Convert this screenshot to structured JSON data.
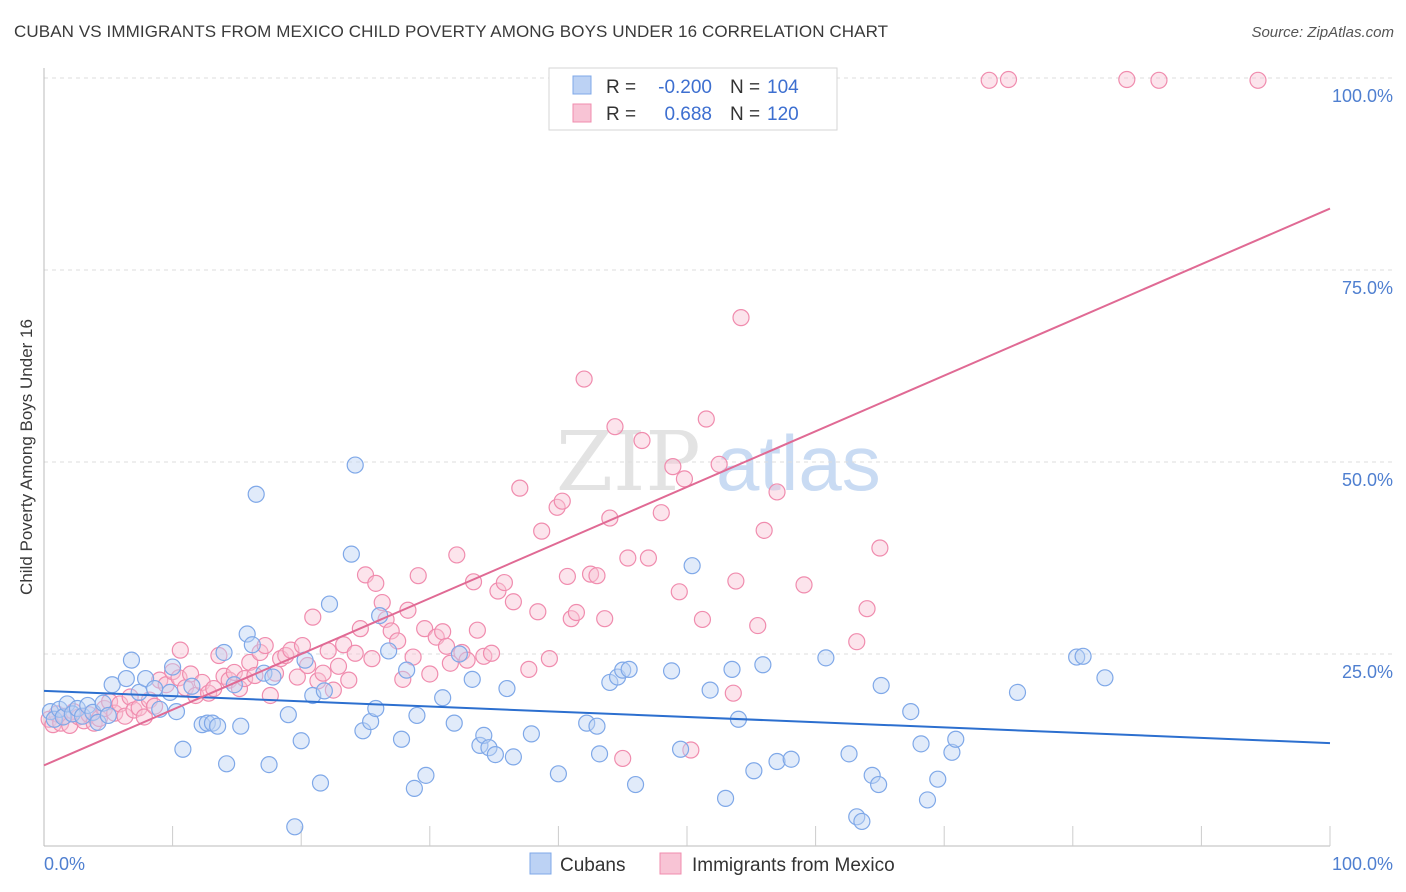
{
  "header": {
    "title": "CUBAN VS IMMIGRANTS FROM MEXICO CHILD POVERTY AMONG BOYS UNDER 16 CORRELATION CHART",
    "source": "Source: ZipAtlas.com"
  },
  "watermark": {
    "part1": "ZIP",
    "part2": "atlas"
  },
  "colors": {
    "cubans": "#7fa8e8",
    "cubans_fill": "#bcd2f4",
    "cubans_line": "#2c6fcf",
    "mexico": "#f08cae",
    "mexico_fill": "#f8c4d5",
    "mexico_line": "#e06a94",
    "axis_text": "#4f7fd0",
    "grid": "#dddddd"
  },
  "stats_box": {
    "rows": [
      {
        "r_label": "R =",
        "r_value": "-0.200",
        "n_label": "N =",
        "n_value": "104"
      },
      {
        "r_label": "R =",
        "r_value": "0.688",
        "n_label": "N =",
        "n_value": "120"
      }
    ]
  },
  "chart_data": {
    "type": "scatter",
    "title": "CUBAN VS IMMIGRANTS FROM MEXICO CHILD POVERTY AMONG BOYS UNDER 16 CORRELATION CHART",
    "xlabel": "",
    "ylabel": "Child Poverty Among Boys Under 16",
    "xlim": [
      0,
      100
    ],
    "ylim": [
      0,
      102
    ],
    "x_tick_labels": [
      "0.0%",
      "100.0%"
    ],
    "y_ticks": [
      25,
      50,
      75,
      100
    ],
    "y_tick_labels": [
      "25.0%",
      "50.0%",
      "75.0%",
      "100.0%"
    ],
    "grid": true,
    "legend_position": "bottom-center",
    "series": [
      {
        "name": "Cubans",
        "r": -0.2,
        "n": 104,
        "trend": {
          "x": [
            0,
            100
          ],
          "y": [
            20.2,
            13.4
          ]
        },
        "points": [
          [
            0.5,
            17.5
          ],
          [
            0.8,
            16.5
          ],
          [
            1.2,
            17.8
          ],
          [
            1.5,
            16.8
          ],
          [
            1.8,
            18.5
          ],
          [
            2.2,
            17.2
          ],
          [
            2.6,
            17.9
          ],
          [
            3.0,
            16.9
          ],
          [
            3.4,
            18.3
          ],
          [
            3.8,
            17.4
          ],
          [
            4.2,
            16.1
          ],
          [
            4.6,
            18.6
          ],
          [
            5.0,
            17.0
          ],
          [
            5.3,
            21.0
          ],
          [
            6.4,
            21.8
          ],
          [
            6.8,
            24.2
          ],
          [
            7.4,
            20.0
          ],
          [
            7.9,
            21.8
          ],
          [
            8.6,
            20.5
          ],
          [
            9.0,
            17.8
          ],
          [
            9.8,
            20.0
          ],
          [
            10.0,
            23.3
          ],
          [
            10.3,
            17.5
          ],
          [
            10.8,
            12.6
          ],
          [
            11.5,
            20.8
          ],
          [
            12.3,
            15.8
          ],
          [
            12.7,
            16.0
          ],
          [
            13.1,
            16.0
          ],
          [
            13.5,
            15.6
          ],
          [
            14.0,
            25.2
          ],
          [
            14.2,
            10.7
          ],
          [
            14.8,
            21.0
          ],
          [
            15.3,
            15.6
          ],
          [
            15.8,
            27.6
          ],
          [
            16.2,
            26.2
          ],
          [
            16.5,
            45.8
          ],
          [
            17.1,
            22.5
          ],
          [
            17.5,
            10.6
          ],
          [
            17.8,
            22.0
          ],
          [
            19.0,
            17.1
          ],
          [
            19.5,
            2.5
          ],
          [
            20.0,
            13.7
          ],
          [
            20.3,
            24.2
          ],
          [
            20.9,
            19.6
          ],
          [
            21.5,
            8.2
          ],
          [
            21.8,
            20.2
          ],
          [
            22.2,
            31.5
          ],
          [
            23.9,
            38.0
          ],
          [
            24.2,
            49.6
          ],
          [
            24.8,
            15.0
          ],
          [
            25.4,
            16.2
          ],
          [
            25.8,
            17.9
          ],
          [
            26.1,
            30.0
          ],
          [
            26.8,
            25.4
          ],
          [
            27.8,
            13.9
          ],
          [
            28.2,
            22.9
          ],
          [
            28.8,
            7.5
          ],
          [
            29.0,
            17.0
          ],
          [
            29.7,
            9.2
          ],
          [
            31.0,
            19.3
          ],
          [
            31.9,
            16.0
          ],
          [
            32.3,
            25.0
          ],
          [
            33.3,
            21.7
          ],
          [
            33.9,
            13.1
          ],
          [
            34.2,
            14.4
          ],
          [
            34.6,
            12.8
          ],
          [
            35.1,
            11.9
          ],
          [
            36.0,
            20.5
          ],
          [
            36.5,
            11.6
          ],
          [
            37.9,
            14.6
          ],
          [
            40.0,
            9.4
          ],
          [
            42.2,
            16.0
          ],
          [
            43.0,
            15.6
          ],
          [
            43.2,
            12.0
          ],
          [
            44.0,
            21.3
          ],
          [
            44.6,
            22.0
          ],
          [
            45.0,
            22.9
          ],
          [
            45.5,
            23.0
          ],
          [
            46.0,
            8.0
          ],
          [
            48.8,
            22.8
          ],
          [
            49.5,
            12.6
          ],
          [
            50.4,
            36.5
          ],
          [
            51.8,
            20.3
          ],
          [
            53.0,
            6.2
          ],
          [
            54.0,
            16.5
          ],
          [
            55.2,
            9.8
          ],
          [
            55.9,
            23.6
          ],
          [
            57.0,
            11.0
          ],
          [
            58.1,
            11.3
          ],
          [
            60.8,
            24.5
          ],
          [
            62.6,
            12.0
          ],
          [
            63.2,
            3.8
          ],
          [
            63.6,
            3.2
          ],
          [
            64.4,
            9.2
          ],
          [
            64.9,
            8.0
          ],
          [
            65.1,
            20.9
          ],
          [
            67.4,
            17.5
          ],
          [
            68.2,
            13.3
          ],
          [
            68.7,
            6.0
          ],
          [
            69.5,
            8.7
          ],
          [
            70.6,
            12.2
          ],
          [
            70.9,
            13.9
          ],
          [
            75.7,
            20.0
          ],
          [
            80.3,
            24.6
          ],
          [
            80.8,
            24.7
          ],
          [
            82.5,
            21.9
          ],
          [
            53.5,
            23.0
          ]
        ]
      },
      {
        "name": "Immigrants from Mexico",
        "r": 0.688,
        "n": 120,
        "trend": {
          "x": [
            0,
            100
          ],
          "y": [
            10.5,
            83.0
          ]
        },
        "points": [
          [
            0.4,
            16.5
          ],
          [
            0.7,
            15.8
          ],
          [
            1.0,
            17.2
          ],
          [
            1.3,
            16.0
          ],
          [
            1.6,
            16.9
          ],
          [
            2.0,
            15.7
          ],
          [
            2.3,
            17.5
          ],
          [
            2.7,
            16.8
          ],
          [
            3.1,
            16.3
          ],
          [
            3.5,
            17.1
          ],
          [
            3.9,
            16.0
          ],
          [
            4.3,
            16.6
          ],
          [
            4.7,
            17.9
          ],
          [
            5.1,
            18.8
          ],
          [
            5.5,
            17.3
          ],
          [
            5.9,
            18.5
          ],
          [
            6.3,
            16.9
          ],
          [
            6.7,
            19.4
          ],
          [
            7.0,
            17.7
          ],
          [
            7.4,
            18.0
          ],
          [
            7.8,
            16.8
          ],
          [
            8.2,
            19.0
          ],
          [
            8.6,
            18.2
          ],
          [
            9.0,
            21.6
          ],
          [
            9.5,
            21.0
          ],
          [
            10.0,
            22.7
          ],
          [
            10.5,
            21.9
          ],
          [
            10.6,
            25.5
          ],
          [
            11.0,
            20.6
          ],
          [
            11.4,
            22.4
          ],
          [
            11.8,
            19.6
          ],
          [
            12.3,
            21.3
          ],
          [
            12.8,
            19.9
          ],
          [
            13.2,
            20.5
          ],
          [
            13.6,
            24.8
          ],
          [
            14.0,
            22.1
          ],
          [
            14.4,
            21.6
          ],
          [
            14.8,
            22.6
          ],
          [
            15.2,
            20.5
          ],
          [
            15.6,
            21.8
          ],
          [
            16.0,
            23.9
          ],
          [
            16.4,
            22.2
          ],
          [
            16.8,
            25.2
          ],
          [
            17.2,
            26.1
          ],
          [
            17.6,
            19.6
          ],
          [
            18.0,
            22.5
          ],
          [
            18.4,
            24.4
          ],
          [
            18.8,
            24.8
          ],
          [
            19.2,
            25.5
          ],
          [
            19.7,
            22.0
          ],
          [
            20.1,
            26.1
          ],
          [
            20.5,
            23.5
          ],
          [
            20.9,
            29.8
          ],
          [
            21.3,
            21.5
          ],
          [
            21.7,
            22.5
          ],
          [
            22.1,
            25.4
          ],
          [
            22.5,
            20.3
          ],
          [
            22.9,
            23.4
          ],
          [
            23.3,
            26.2
          ],
          [
            23.7,
            21.6
          ],
          [
            24.2,
            25.1
          ],
          [
            24.6,
            28.3
          ],
          [
            25.0,
            35.3
          ],
          [
            25.5,
            24.4
          ],
          [
            25.8,
            34.2
          ],
          [
            26.3,
            31.7
          ],
          [
            26.6,
            29.5
          ],
          [
            27.0,
            28.0
          ],
          [
            27.5,
            26.7
          ],
          [
            27.9,
            21.7
          ],
          [
            28.3,
            30.7
          ],
          [
            28.7,
            24.6
          ],
          [
            29.1,
            35.2
          ],
          [
            29.6,
            28.3
          ],
          [
            30.0,
            22.4
          ],
          [
            30.5,
            27.2
          ],
          [
            31.0,
            27.9
          ],
          [
            31.3,
            26.0
          ],
          [
            31.6,
            23.8
          ],
          [
            32.1,
            37.9
          ],
          [
            32.5,
            25.2
          ],
          [
            32.9,
            24.2
          ],
          [
            33.4,
            34.4
          ],
          [
            33.7,
            28.1
          ],
          [
            34.2,
            24.7
          ],
          [
            34.8,
            25.1
          ],
          [
            35.3,
            33.2
          ],
          [
            35.8,
            34.3
          ],
          [
            36.5,
            31.8
          ],
          [
            37.0,
            46.6
          ],
          [
            37.7,
            23.0
          ],
          [
            38.4,
            30.5
          ],
          [
            38.7,
            41.0
          ],
          [
            39.3,
            24.4
          ],
          [
            39.9,
            44.1
          ],
          [
            40.3,
            44.9
          ],
          [
            40.7,
            35.1
          ],
          [
            41.0,
            29.6
          ],
          [
            41.4,
            30.4
          ],
          [
            42.0,
            60.8
          ],
          [
            42.5,
            35.4
          ],
          [
            43.0,
            35.2
          ],
          [
            43.6,
            29.6
          ],
          [
            44.0,
            42.7
          ],
          [
            44.4,
            54.6
          ],
          [
            45.0,
            11.4
          ],
          [
            45.4,
            37.5
          ],
          [
            46.5,
            52.8
          ],
          [
            47.0,
            37.5
          ],
          [
            48.0,
            43.4
          ],
          [
            48.9,
            49.4
          ],
          [
            49.4,
            33.1
          ],
          [
            49.8,
            47.8
          ],
          [
            51.2,
            29.5
          ],
          [
            51.5,
            55.6
          ],
          [
            52.5,
            49.7
          ],
          [
            53.6,
            19.9
          ],
          [
            53.8,
            34.5
          ],
          [
            54.2,
            68.8
          ],
          [
            55.5,
            28.7
          ],
          [
            56.0,
            41.1
          ],
          [
            57.0,
            46.1
          ],
          [
            59.1,
            34.0
          ],
          [
            63.2,
            26.6
          ],
          [
            64.0,
            30.9
          ],
          [
            65.0,
            38.8
          ],
          [
            73.5,
            99.7
          ],
          [
            75.0,
            99.8
          ],
          [
            84.2,
            99.8
          ],
          [
            86.7,
            99.7
          ],
          [
            94.4,
            99.7
          ],
          [
            50.3,
            12.5
          ]
        ]
      }
    ]
  },
  "legend": {
    "items": [
      {
        "label": "Cubans"
      },
      {
        "label": "Immigrants from Mexico"
      }
    ]
  }
}
